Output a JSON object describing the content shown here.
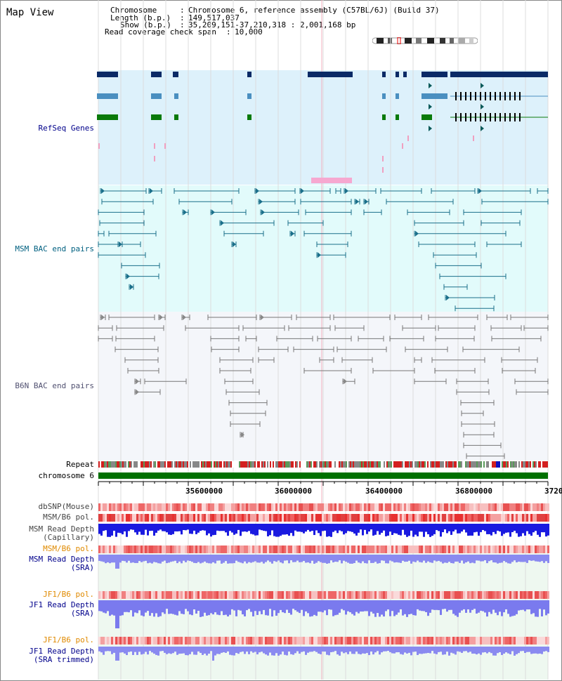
{
  "title": "Map View",
  "info": {
    "rows": [
      {
        "key": "Chromosome",
        "value": "Chromosome 6, reference assembly (C57BL/6J) (Build 37)"
      },
      {
        "key": "Length (b.p.)",
        "value": "149,517,037"
      },
      {
        "key": "Show (b.p.)",
        "value": "35,209,151-37,210,318 : 2,001,168 bp"
      },
      {
        "key": "Read coverage check span",
        "value": "10,000"
      }
    ]
  },
  "tracks": {
    "refseq": "RefSeq Genes",
    "msm_bac": "MSM BAC end pairs",
    "b6n_bac": "B6N BAC end pairs",
    "repeat": "Repeat",
    "chromosome": "chromosome 6",
    "dbsnp": "dbSNP(Mouse)",
    "msm_b6_pol_1": "MSM/B6 pol.",
    "msm_depth_cap_1": "MSM Read Depth",
    "msm_depth_cap_2": "(Capillary)",
    "msm_b6_pol_2": "MSM/B6 pol.",
    "msm_depth_sra_1": "MSM Read Depth",
    "msm_depth_sra_2": "(SRA)",
    "jf1_b6_pol_1": "JF1/B6 pol.",
    "jf1_depth_1": "JF1 Read Depth",
    "jf1_depth_2": "(SRA)",
    "jf1_b6_pol_2": "JF1/B6 pol.",
    "jf1_trim_1": "JF1 Read Depth",
    "jf1_trim_2": "(SRA trimmed)"
  },
  "axis": {
    "ticks": [
      "35600000",
      "36000000",
      "36400000",
      "36800000",
      "3720"
    ]
  },
  "colors": {
    "refseq_bg": "#ddf1fb",
    "msm_bg": "#e2fbfb",
    "b6n_bg": "#f2f6fb",
    "label_blue": "#00008b",
    "label_teal": "#006080",
    "label_orange": "#e08a00",
    "chromosome_bar": "#007000"
  }
}
